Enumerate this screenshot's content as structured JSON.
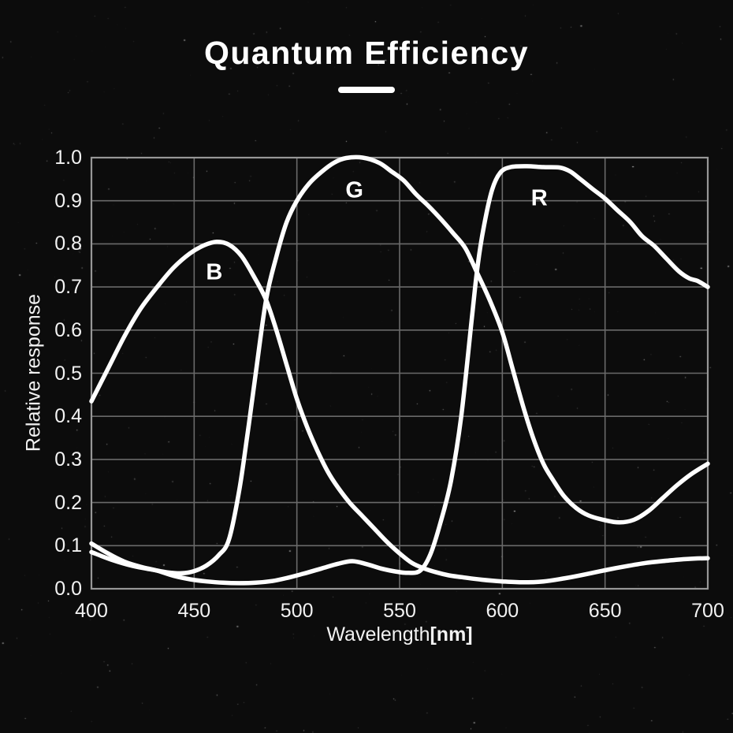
{
  "header": {
    "title": "Quantum Efficiency"
  },
  "colors": {
    "background": "#0c0c0c",
    "curve": "#ffffff",
    "grid": "#6a6a6a",
    "frame": "#979797",
    "text": "#f2f2f2"
  },
  "chart_data": {
    "type": "line",
    "title": "Quantum Efficiency",
    "xlabel": "Wavelength",
    "xlabel_unit": "[nm]",
    "ylabel": "Relative response",
    "xlim": [
      400,
      700
    ],
    "ylim": [
      0.0,
      1.0
    ],
    "x_ticks": [
      "400",
      "450",
      "500",
      "550",
      "600",
      "650",
      "700"
    ],
    "y_ticks": [
      "1.0",
      "0.9",
      "0.8",
      "0.7",
      "0.6",
      "0.5",
      "0.4",
      "0.3",
      "0.2",
      "0.1",
      "0.0"
    ],
    "grid": true,
    "legend_position": "inline-labels",
    "series": [
      {
        "name": "B",
        "label_at": [
          459.8,
          0.733
        ],
        "points": [
          [
            400,
            0.435
          ],
          [
            408,
            0.51
          ],
          [
            416,
            0.585
          ],
          [
            424,
            0.65
          ],
          [
            432,
            0.7
          ],
          [
            440,
            0.745
          ],
          [
            448,
            0.778
          ],
          [
            455,
            0.797
          ],
          [
            461,
            0.805
          ],
          [
            467,
            0.798
          ],
          [
            473,
            0.772
          ],
          [
            479,
            0.725
          ],
          [
            485,
            0.67
          ],
          [
            490,
            0.6
          ],
          [
            495,
            0.52
          ],
          [
            500,
            0.44
          ],
          [
            505,
            0.375
          ],
          [
            510,
            0.32
          ],
          [
            515,
            0.272
          ],
          [
            520,
            0.235
          ],
          [
            526,
            0.198
          ],
          [
            532,
            0.168
          ],
          [
            538,
            0.138
          ],
          [
            544,
            0.108
          ],
          [
            550,
            0.082
          ],
          [
            556,
            0.06
          ],
          [
            562,
            0.047
          ],
          [
            568,
            0.038
          ],
          [
            574,
            0.031
          ],
          [
            580,
            0.027
          ],
          [
            590,
            0.021
          ],
          [
            600,
            0.017
          ],
          [
            610,
            0.015
          ],
          [
            620,
            0.017
          ],
          [
            630,
            0.024
          ],
          [
            640,
            0.033
          ],
          [
            650,
            0.043
          ],
          [
            660,
            0.052
          ],
          [
            670,
            0.06
          ],
          [
            680,
            0.065
          ],
          [
            690,
            0.069
          ],
          [
            700,
            0.071
          ]
        ]
      },
      {
        "name": "G",
        "label_at": [
          528.0,
          0.923
        ],
        "points": [
          [
            400,
            0.085
          ],
          [
            410,
            0.067
          ],
          [
            420,
            0.053
          ],
          [
            430,
            0.044
          ],
          [
            437,
            0.038
          ],
          [
            444,
            0.036
          ],
          [
            450,
            0.041
          ],
          [
            456,
            0.054
          ],
          [
            462,
            0.078
          ],
          [
            467,
            0.115
          ],
          [
            472,
            0.23
          ],
          [
            476,
            0.36
          ],
          [
            480,
            0.5
          ],
          [
            485,
            0.67
          ],
          [
            490,
            0.77
          ],
          [
            495,
            0.85
          ],
          [
            500,
            0.9
          ],
          [
            506,
            0.94
          ],
          [
            512,
            0.967
          ],
          [
            518,
            0.988
          ],
          [
            524,
            0.999
          ],
          [
            532,
            1.0
          ],
          [
            540,
            0.988
          ],
          [
            546,
            0.968
          ],
          [
            552,
            0.947
          ],
          [
            558,
            0.915
          ],
          [
            564,
            0.888
          ],
          [
            570,
            0.858
          ],
          [
            576,
            0.825
          ],
          [
            582,
            0.79
          ],
          [
            588,
            0.73
          ],
          [
            594,
            0.668
          ],
          [
            600,
            0.595
          ],
          [
            605,
            0.51
          ],
          [
            610,
            0.425
          ],
          [
            615,
            0.35
          ],
          [
            620,
            0.29
          ],
          [
            625,
            0.25
          ],
          [
            630,
            0.215
          ],
          [
            636,
            0.187
          ],
          [
            642,
            0.17
          ],
          [
            650,
            0.159
          ],
          [
            657,
            0.154
          ],
          [
            664,
            0.16
          ],
          [
            671,
            0.18
          ],
          [
            678,
            0.21
          ],
          [
            685,
            0.24
          ],
          [
            692,
            0.266
          ],
          [
            700,
            0.29
          ]
        ]
      },
      {
        "name": "R",
        "label_at": [
          618.0,
          0.905
        ],
        "points": [
          [
            400,
            0.105
          ],
          [
            408,
            0.082
          ],
          [
            416,
            0.063
          ],
          [
            424,
            0.051
          ],
          [
            432,
            0.042
          ],
          [
            440,
            0.03
          ],
          [
            448,
            0.022
          ],
          [
            456,
            0.017
          ],
          [
            464,
            0.014
          ],
          [
            472,
            0.013
          ],
          [
            480,
            0.014
          ],
          [
            488,
            0.018
          ],
          [
            496,
            0.026
          ],
          [
            504,
            0.036
          ],
          [
            512,
            0.047
          ],
          [
            520,
            0.058
          ],
          [
            527,
            0.064
          ],
          [
            534,
            0.057
          ],
          [
            541,
            0.047
          ],
          [
            548,
            0.04
          ],
          [
            554,
            0.037
          ],
          [
            560,
            0.042
          ],
          [
            565,
            0.08
          ],
          [
            570,
            0.155
          ],
          [
            575,
            0.25
          ],
          [
            580,
            0.4
          ],
          [
            585,
            0.62
          ],
          [
            588,
            0.75
          ],
          [
            591,
            0.84
          ],
          [
            595,
            0.925
          ],
          [
            599,
            0.965
          ],
          [
            604,
            0.978
          ],
          [
            612,
            0.98
          ],
          [
            620,
            0.978
          ],
          [
            628,
            0.977
          ],
          [
            633,
            0.968
          ],
          [
            638,
            0.95
          ],
          [
            644,
            0.927
          ],
          [
            650,
            0.905
          ],
          [
            656,
            0.878
          ],
          [
            662,
            0.852
          ],
          [
            668,
            0.818
          ],
          [
            674,
            0.795
          ],
          [
            680,
            0.765
          ],
          [
            686,
            0.736
          ],
          [
            691,
            0.72
          ],
          [
            695,
            0.714
          ],
          [
            700,
            0.7
          ]
        ]
      }
    ]
  }
}
